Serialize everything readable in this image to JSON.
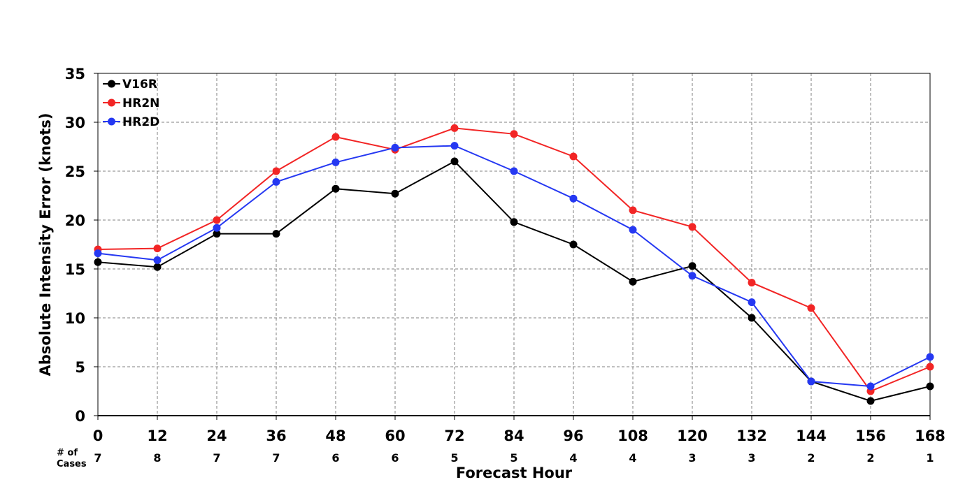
{
  "chart_data": {
    "type": "line",
    "title": "",
    "xlabel": "Forecast Hour",
    "ylabel": "Absolute Intensity Error (knots)",
    "x": [
      0,
      12,
      24,
      36,
      48,
      60,
      72,
      84,
      96,
      108,
      120,
      132,
      144,
      156,
      168
    ],
    "x_tick_labels": [
      "0",
      "12",
      "24",
      "36",
      "48",
      "60",
      "72",
      "84",
      "96",
      "108",
      "120",
      "132",
      "144",
      "156",
      "168"
    ],
    "y_tick_labels": [
      "0",
      "5",
      "10",
      "15",
      "20",
      "25",
      "30",
      "35"
    ],
    "xlim": [
      0,
      168
    ],
    "ylim": [
      0,
      35
    ],
    "grid": true,
    "legend_position": "top-left",
    "series": [
      {
        "name": "V16R",
        "color": "#000000",
        "values": [
          15.7,
          15.2,
          18.6,
          18.6,
          23.2,
          22.7,
          26.0,
          19.8,
          17.5,
          13.7,
          15.3,
          10.0,
          3.5,
          1.5,
          3.0
        ]
      },
      {
        "name": "HR2N",
        "color": "#f22525",
        "values": [
          17.0,
          17.1,
          20.0,
          25.0,
          28.5,
          27.2,
          29.4,
          28.8,
          26.5,
          21.0,
          19.3,
          13.6,
          11.0,
          2.5,
          5.0
        ]
      },
      {
        "name": "HR2D",
        "color": "#2538f2",
        "values": [
          16.6,
          15.9,
          19.2,
          23.9,
          25.9,
          27.4,
          27.6,
          25.0,
          22.2,
          19.0,
          14.3,
          11.6,
          3.5,
          3.0,
          6.0
        ]
      }
    ],
    "cases_label_line1": "# of",
    "cases_label_line2": "Cases",
    "cases": [
      "7",
      "8",
      "7",
      "7",
      "6",
      "6",
      "5",
      "5",
      "4",
      "4",
      "3",
      "3",
      "2",
      "2",
      "1"
    ]
  }
}
